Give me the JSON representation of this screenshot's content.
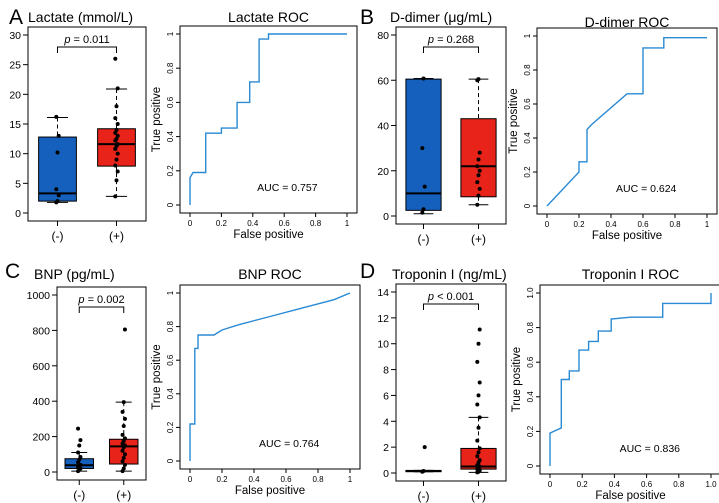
{
  "colors": {
    "neg": "#1560bd",
    "pos": "#e8231a",
    "roc": "#2a8ad4",
    "axis": "#000000"
  },
  "chart_data": [
    {
      "type": "box",
      "letter": "A",
      "title": "Lactate (mmol/L)",
      "categories": [
        "(-)",
        "(+)"
      ],
      "ylim": [
        0,
        30
      ],
      "yticks": [
        0,
        5,
        10,
        15,
        20,
        25,
        30
      ],
      "boxes": [
        {
          "q1": 2.0,
          "median": 3.3,
          "q3": 12.8,
          "whisker_low": 1.8,
          "whisker_high": 16.1,
          "points": [
            1.8,
            2.0,
            3.0,
            4.0,
            10.2,
            13.0,
            16.2
          ]
        },
        {
          "q1": 7.9,
          "median": 11.6,
          "q3": 14.2,
          "whisker_low": 2.8,
          "whisker_high": 20.9,
          "points": [
            2.8,
            5.5,
            7.0,
            8.0,
            9.0,
            10.0,
            10.8,
            11.3,
            11.6,
            12.2,
            12.5,
            13.0,
            13.5,
            14.0,
            15.0,
            16.0,
            18.0,
            21.0,
            26.0
          ]
        }
      ],
      "p_label": "p",
      "p_value": " = 0.011"
    },
    {
      "type": "line",
      "title": "Lactate ROC",
      "xlabel": "False positive",
      "ylabel": "True positive",
      "xlim": [
        0,
        1
      ],
      "ylim": [
        0,
        1
      ],
      "ticks": [
        "0",
        "0.2",
        "0.4",
        "0.6",
        "0.8",
        "1"
      ],
      "x": [
        0,
        0,
        0.02,
        0.1,
        0.1,
        0.2,
        0.2,
        0.3,
        0.3,
        0.38,
        0.38,
        0.44,
        0.44,
        0.5,
        0.5,
        0.6,
        0.7,
        0.8,
        0.9,
        1.0
      ],
      "y": [
        0,
        0.16,
        0.19,
        0.19,
        0.42,
        0.42,
        0.45,
        0.45,
        0.6,
        0.6,
        0.72,
        0.72,
        0.97,
        0.97,
        1.0,
        1.0,
        1.0,
        1.0,
        1.0,
        1.0
      ],
      "auc_label": "AUC =  0.757"
    },
    {
      "type": "box",
      "letter": "B",
      "title": "D-dimer (μg/mL)",
      "categories": [
        "(-)",
        "(+)"
      ],
      "ylim": [
        0,
        80
      ],
      "yticks": [
        0,
        20,
        40,
        60,
        80
      ],
      "boxes": [
        {
          "q1": 2.5,
          "median": 10.0,
          "q3": 60.5,
          "whisker_low": 1.0,
          "whisker_high": 60.8,
          "points": [
            1.5,
            3.0,
            13.0,
            30.0,
            60.8
          ]
        },
        {
          "q1": 8.5,
          "median": 22.0,
          "q3": 43.0,
          "whisker_low": 5.0,
          "whisker_high": 60.5,
          "points": [
            5.0,
            9.0,
            12.0,
            15.0,
            18.0,
            20.0,
            22.0,
            25.0,
            28.0,
            60.0,
            60.5
          ]
        }
      ],
      "p_label": "p",
      "p_value": " = 0.268"
    },
    {
      "type": "line",
      "title": "D-dimer ROC",
      "xlabel": "False positive",
      "ylabel": "True positive",
      "xlim": [
        0,
        1
      ],
      "ylim": [
        0,
        1
      ],
      "ticks": [
        "0",
        "0.2",
        "0.4",
        "0.6",
        "0.8",
        "1"
      ],
      "x": [
        0,
        0.2,
        0.2,
        0.25,
        0.25,
        0.28,
        0.5,
        0.6,
        0.6,
        0.73,
        0.73,
        1.0
      ],
      "y": [
        0,
        0.2,
        0.26,
        0.26,
        0.45,
        0.48,
        0.66,
        0.66,
        0.93,
        0.93,
        0.99,
        0.99
      ],
      "auc_label": "AUC =  0.624"
    },
    {
      "type": "box",
      "letter": "C",
      "title": "BNP (pg/mL)",
      "categories": [
        "(-)",
        "(+)"
      ],
      "ylim": [
        0,
        1000
      ],
      "yticks": [
        0,
        200,
        400,
        600,
        800,
        1000
      ],
      "boxes": [
        {
          "q1": 20,
          "median": 38,
          "q3": 75,
          "whisker_low": 5,
          "whisker_high": 110,
          "points": [
            5,
            12,
            20,
            28,
            35,
            40,
            55,
            70,
            85,
            110,
            150,
            180,
            245
          ]
        },
        {
          "q1": 45,
          "median": 145,
          "q3": 185,
          "whisker_low": 5,
          "whisker_high": 395,
          "points": [
            5,
            20,
            40,
            60,
            80,
            100,
            120,
            140,
            150,
            160,
            175,
            190,
            210,
            260,
            300,
            340,
            395,
            805
          ]
        }
      ],
      "p_label": "p",
      "p_value": " = 0.002"
    },
    {
      "type": "line",
      "title": "BNP  ROC",
      "xlabel": "False positive",
      "ylabel": "True positive",
      "xlim": [
        0,
        1
      ],
      "ylim": [
        0,
        1
      ],
      "ticks": [
        "0",
        "0.2",
        "0.4",
        "0.6",
        "0.8",
        "1"
      ],
      "x": [
        0,
        0,
        0.03,
        0.03,
        0.05,
        0.05,
        0.08,
        0.15,
        0.2,
        0.3,
        0.5,
        0.7,
        0.9,
        1.0
      ],
      "y": [
        0,
        0.22,
        0.22,
        0.67,
        0.67,
        0.75,
        0.75,
        0.75,
        0.78,
        0.81,
        0.86,
        0.91,
        0.96,
        1.0
      ],
      "auc_label": "AUC =  0.764"
    },
    {
      "type": "box",
      "letter": "D",
      "title": "Troponin I (ng/mL)",
      "categories": [
        "(-)",
        "(+)"
      ],
      "ylim": [
        0,
        14
      ],
      "yticks": [
        0,
        2,
        4,
        6,
        8,
        10,
        12,
        14
      ],
      "boxes": [
        {
          "q1": 0.1,
          "median": 0.15,
          "q3": 0.2,
          "whisker_low": 0.1,
          "whisker_high": 0.2,
          "points": [
            0.1,
            0.15,
            2.0
          ]
        },
        {
          "q1": 0.3,
          "median": 0.5,
          "q3": 1.9,
          "whisker_low": 0.05,
          "whisker_high": 4.3,
          "points": [
            0.05,
            0.1,
            0.2,
            0.3,
            0.4,
            0.5,
            0.6,
            0.8,
            1.0,
            1.3,
            1.6,
            1.9,
            2.5,
            3.5,
            4.3,
            5.3,
            6.0,
            7.0,
            8.6,
            10.0,
            11.1
          ]
        }
      ],
      "p_label": "p",
      "p_value": " < 0.001"
    },
    {
      "type": "line",
      "title": "Troponin I ROC",
      "xlabel": "False positive",
      "ylabel": "True positive",
      "xlim": [
        0,
        1
      ],
      "ylim": [
        0,
        1
      ],
      "ticks": [
        "0",
        "0.2",
        "0.4",
        "0.6",
        "0.8",
        "1.0"
      ],
      "x": [
        0,
        0,
        0.07,
        0.07,
        0.12,
        0.12,
        0.18,
        0.18,
        0.24,
        0.24,
        0.3,
        0.3,
        0.38,
        0.38,
        0.5,
        0.7,
        0.7,
        1.0,
        1.0
      ],
      "y": [
        0,
        0.19,
        0.22,
        0.5,
        0.5,
        0.55,
        0.55,
        0.67,
        0.67,
        0.72,
        0.72,
        0.78,
        0.78,
        0.85,
        0.86,
        0.86,
        0.94,
        0.94,
        1.0
      ],
      "auc_label": "AUC =  0.836"
    }
  ]
}
